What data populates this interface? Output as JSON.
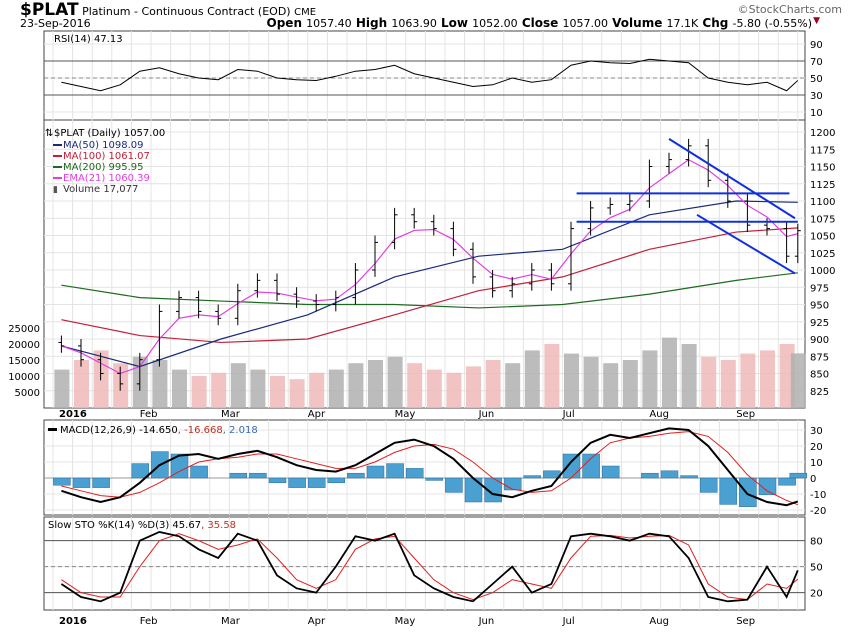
{
  "header": {
    "symbol": "$PLAT",
    "name": "Platinum - Continuous Contract (EOD)",
    "exchange": "CME",
    "date": "23-Sep-2016",
    "brand": "©StockCharts.com",
    "ohlc": [
      {
        "k": "Open",
        "v": "1057.40"
      },
      {
        "k": "High",
        "v": "1063.90"
      },
      {
        "k": "Low",
        "v": "1052.00"
      },
      {
        "k": "Close",
        "v": "1057.00"
      },
      {
        "k": "Volume",
        "v": "17.1K"
      },
      {
        "k": "Chg",
        "v": "-5.80 (-0.55%)"
      }
    ]
  },
  "legends": {
    "rsi": "RSI(14) 47.13",
    "price": "$PLAT (Daily) 1057.00",
    "ma50": "MA(50) 1098.09",
    "ma100": "MA(100) 1061.07",
    "ma200": "MA(200) 995.95",
    "ema21": "EMA(21) 1060.39",
    "volume": "Volume 17,077",
    "macd": "MACD(12,26,9) -14.650",
    "macd_signal": ", -16.668",
    "macd_hist": ", 2.018",
    "sto": "Slow STO %K(14) %D(3)",
    "sto_k": "45.67",
    "sto_d": "35.58"
  },
  "colors": {
    "ma50": "#1a2a7a",
    "ma100": "#c0203a",
    "ma200": "#1e6a1e",
    "ema21": "#e040e0",
    "volume": "#b0b0b0",
    "volume_up": "#f0b8b8",
    "macd_hist": "#4aa0d0",
    "trendline": "#1030e0",
    "down_marker": "#a00020"
  },
  "chart_data": {
    "type": "line",
    "x_months": [
      "2016",
      "Feb",
      "Mar",
      "Apr",
      "May",
      "Jun",
      "Jul",
      "Aug",
      "Sep"
    ],
    "dates": [
      "2016-01-04",
      "2016-01-11",
      "2016-01-18",
      "2016-01-25",
      "2016-02-01",
      "2016-02-08",
      "2016-02-15",
      "2016-02-22",
      "2016-02-29",
      "2016-03-07",
      "2016-03-14",
      "2016-03-21",
      "2016-03-28",
      "2016-04-04",
      "2016-04-11",
      "2016-04-18",
      "2016-04-25",
      "2016-05-02",
      "2016-05-09",
      "2016-05-16",
      "2016-05-23",
      "2016-05-30",
      "2016-06-06",
      "2016-06-13",
      "2016-06-20",
      "2016-06-27",
      "2016-07-04",
      "2016-07-11",
      "2016-07-18",
      "2016-07-25",
      "2016-08-01",
      "2016-08-08",
      "2016-08-15",
      "2016-08-22",
      "2016-08-29",
      "2016-09-05",
      "2016-09-12",
      "2016-09-19",
      "2016-09-23"
    ],
    "close": [
      890,
      870,
      850,
      835,
      870,
      940,
      960,
      940,
      930,
      970,
      985,
      965,
      955,
      950,
      960,
      1000,
      1040,
      1080,
      1070,
      1060,
      1030,
      990,
      970,
      980,
      1000,
      980,
      1060,
      1090,
      1095,
      1100,
      1150,
      1160,
      1180,
      1130,
      1100,
      1065,
      1060,
      1020,
      1057
    ],
    "volume": [
      12000,
      15000,
      18000,
      14000,
      16000,
      15000,
      12000,
      10000,
      11000,
      14000,
      12000,
      10000,
      9000,
      11000,
      12000,
      14000,
      15000,
      16000,
      14000,
      12000,
      11000,
      13000,
      15000,
      14000,
      18000,
      20000,
      17000,
      16000,
      14000,
      15000,
      18000,
      22000,
      20000,
      16000,
      15000,
      17000,
      18000,
      20000,
      17077
    ],
    "ma_dates": [
      "2016-01-04",
      "2016-02-01",
      "2016-03-01",
      "2016-04-01",
      "2016-05-02",
      "2016-06-01",
      "2016-07-01",
      "2016-08-01",
      "2016-09-01",
      "2016-09-23"
    ],
    "ma50": [
      890,
      860,
      900,
      935,
      990,
      1020,
      1030,
      1080,
      1100,
      1098.09
    ],
    "ma100": [
      928,
      905,
      895,
      900,
      935,
      970,
      990,
      1030,
      1055,
      1061.07
    ],
    "ma200": [
      978,
      960,
      955,
      950,
      950,
      945,
      950,
      965,
      985,
      995.95
    ],
    "rsi": [
      45,
      40,
      35,
      42,
      58,
      62,
      55,
      50,
      48,
      60,
      58,
      50,
      48,
      47,
      52,
      58,
      60,
      65,
      55,
      50,
      45,
      40,
      42,
      50,
      45,
      48,
      65,
      70,
      68,
      67,
      72,
      70,
      68,
      50,
      45,
      42,
      45,
      35,
      47.13
    ],
    "macd": [
      -8,
      -12,
      -15,
      -12,
      -3,
      8,
      14,
      15,
      12,
      15,
      17,
      13,
      8,
      5,
      4,
      8,
      15,
      22,
      24,
      20,
      12,
      0,
      -10,
      -12,
      -8,
      -5,
      10,
      22,
      27,
      25,
      28,
      31,
      30,
      20,
      5,
      -10,
      -15,
      -17,
      -14.65
    ],
    "macd_signal": [
      -5,
      -8,
      -11,
      -12,
      -9,
      -3,
      4,
      10,
      12,
      13,
      15,
      15,
      12,
      9,
      6,
      6,
      10,
      16,
      20,
      21,
      18,
      10,
      0,
      -7,
      -9,
      -8,
      0,
      12,
      22,
      25,
      26,
      28,
      29,
      26,
      16,
      2,
      -8,
      -14,
      -16.668
    ],
    "sto_k": [
      30,
      15,
      10,
      20,
      80,
      90,
      85,
      70,
      60,
      88,
      80,
      40,
      25,
      20,
      50,
      85,
      80,
      88,
      40,
      25,
      15,
      10,
      30,
      50,
      20,
      30,
      85,
      88,
      85,
      80,
      88,
      85,
      60,
      15,
      10,
      12,
      50,
      15,
      45.67
    ],
    "sto_d": [
      35,
      20,
      15,
      15,
      50,
      80,
      88,
      80,
      70,
      75,
      82,
      60,
      35,
      25,
      35,
      70,
      82,
      85,
      60,
      35,
      20,
      12,
      20,
      35,
      30,
      25,
      60,
      85,
      86,
      83,
      85,
      86,
      75,
      30,
      15,
      12,
      30,
      25,
      35.58
    ],
    "trendlines": [
      {
        "from": [
          "2016-07-06",
          1111
        ],
        "to": [
          "2016-09-20",
          1111
        ]
      },
      {
        "from": [
          "2016-07-06",
          1070
        ],
        "to": [
          "2016-09-23",
          1070
        ]
      },
      {
        "from": [
          "2016-08-08",
          1190
        ],
        "to": [
          "2016-09-22",
          1075
        ]
      },
      {
        "from": [
          "2016-08-18",
          1080
        ],
        "to": [
          "2016-09-22",
          995
        ]
      }
    ],
    "price_ticks": [
      1200,
      1175,
      1150,
      1125,
      1100,
      1075,
      1050,
      1025,
      1000,
      975,
      950,
      925,
      900,
      875,
      850,
      825
    ],
    "volume_ticks": [
      25000,
      20000,
      15000,
      10000,
      5000
    ],
    "rsi_ticks": [
      90,
      70,
      50,
      30,
      10
    ],
    "macd_ticks": [
      30,
      20,
      10,
      0,
      -10,
      -20
    ],
    "sto_ticks": [
      80,
      50,
      20
    ],
    "grid": true
  }
}
